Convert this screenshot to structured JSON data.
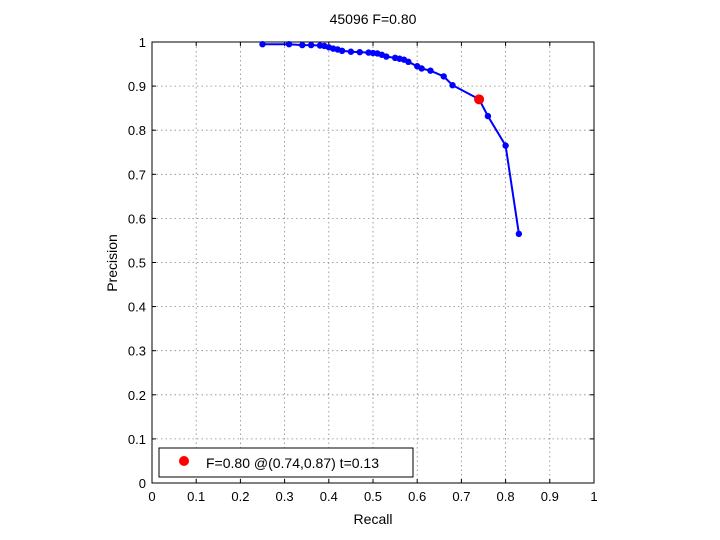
{
  "chart_data": {
    "type": "line",
    "title": "45096 F=0.80",
    "xlabel": "Recall",
    "ylabel": "Precision",
    "xlim": [
      0,
      1
    ],
    "ylim": [
      0,
      1
    ],
    "grid": true,
    "x_ticks": [
      "0",
      "0.1",
      "0.2",
      "0.3",
      "0.4",
      "0.5",
      "0.6",
      "0.7",
      "0.8",
      "0.9",
      "1"
    ],
    "y_ticks": [
      "0",
      "0.1",
      "0.2",
      "0.3",
      "0.4",
      "0.5",
      "0.6",
      "0.7",
      "0.8",
      "0.9",
      "1"
    ],
    "series": [
      {
        "color": "#0000ff",
        "x": [
          0.25,
          0.31,
          0.34,
          0.36,
          0.38,
          0.39,
          0.4,
          0.41,
          0.42,
          0.43,
          0.45,
          0.47,
          0.49,
          0.5,
          0.51,
          0.52,
          0.53,
          0.55,
          0.56,
          0.57,
          0.58,
          0.6,
          0.61,
          0.63,
          0.66,
          0.68,
          0.74,
          0.76,
          0.8,
          0.83
        ],
        "y": [
          0.995,
          0.995,
          0.993,
          0.993,
          0.992,
          0.991,
          0.988,
          0.985,
          0.983,
          0.98,
          0.978,
          0.977,
          0.976,
          0.975,
          0.974,
          0.971,
          0.967,
          0.964,
          0.962,
          0.96,
          0.955,
          0.945,
          0.94,
          0.935,
          0.922,
          0.902,
          0.87,
          0.832,
          0.765,
          0.565
        ]
      }
    ],
    "highlight_point": {
      "x": 0.74,
      "y": 0.87,
      "color": "#ff0000"
    },
    "legend": {
      "placement": "bottom-left",
      "text": "F=0.80 @(0.74,0.87) t=0.13",
      "marker_color": "#ff0000"
    }
  }
}
